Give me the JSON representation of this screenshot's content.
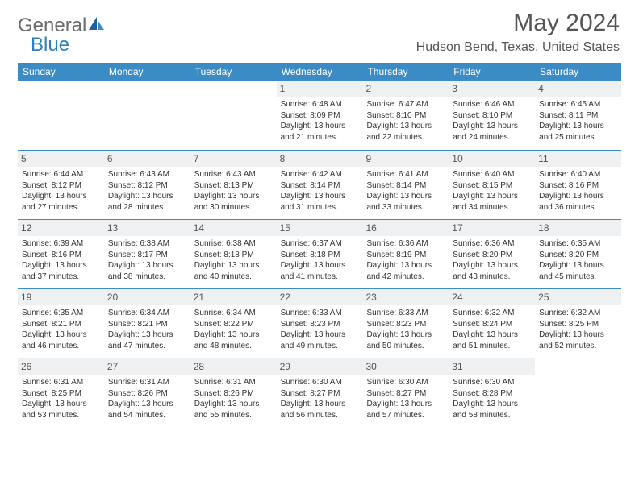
{
  "logo": {
    "part1": "General",
    "part2": "Blue"
  },
  "title": "May 2024",
  "location": "Hudson Bend, Texas, United States",
  "colors": {
    "header_bg": "#3b8bc4",
    "header_text": "#ffffff",
    "daynum_bg": "#eef0f2",
    "text": "#333333",
    "title_text": "#555555",
    "row_border": "#3b8bc4",
    "logo_gray": "#6b6b6b",
    "logo_blue": "#2d7fbf"
  },
  "dayHeaders": [
    "Sunday",
    "Monday",
    "Tuesday",
    "Wednesday",
    "Thursday",
    "Friday",
    "Saturday"
  ],
  "weeks": [
    [
      {
        "empty": true
      },
      {
        "empty": true
      },
      {
        "empty": true
      },
      {
        "num": "1",
        "sunrise": "Sunrise: 6:48 AM",
        "sunset": "Sunset: 8:09 PM",
        "daylight": "Daylight: 13 hours and 21 minutes."
      },
      {
        "num": "2",
        "sunrise": "Sunrise: 6:47 AM",
        "sunset": "Sunset: 8:10 PM",
        "daylight": "Daylight: 13 hours and 22 minutes."
      },
      {
        "num": "3",
        "sunrise": "Sunrise: 6:46 AM",
        "sunset": "Sunset: 8:10 PM",
        "daylight": "Daylight: 13 hours and 24 minutes."
      },
      {
        "num": "4",
        "sunrise": "Sunrise: 6:45 AM",
        "sunset": "Sunset: 8:11 PM",
        "daylight": "Daylight: 13 hours and 25 minutes."
      }
    ],
    [
      {
        "num": "5",
        "sunrise": "Sunrise: 6:44 AM",
        "sunset": "Sunset: 8:12 PM",
        "daylight": "Daylight: 13 hours and 27 minutes."
      },
      {
        "num": "6",
        "sunrise": "Sunrise: 6:43 AM",
        "sunset": "Sunset: 8:12 PM",
        "daylight": "Daylight: 13 hours and 28 minutes."
      },
      {
        "num": "7",
        "sunrise": "Sunrise: 6:43 AM",
        "sunset": "Sunset: 8:13 PM",
        "daylight": "Daylight: 13 hours and 30 minutes."
      },
      {
        "num": "8",
        "sunrise": "Sunrise: 6:42 AM",
        "sunset": "Sunset: 8:14 PM",
        "daylight": "Daylight: 13 hours and 31 minutes."
      },
      {
        "num": "9",
        "sunrise": "Sunrise: 6:41 AM",
        "sunset": "Sunset: 8:14 PM",
        "daylight": "Daylight: 13 hours and 33 minutes."
      },
      {
        "num": "10",
        "sunrise": "Sunrise: 6:40 AM",
        "sunset": "Sunset: 8:15 PM",
        "daylight": "Daylight: 13 hours and 34 minutes."
      },
      {
        "num": "11",
        "sunrise": "Sunrise: 6:40 AM",
        "sunset": "Sunset: 8:16 PM",
        "daylight": "Daylight: 13 hours and 36 minutes."
      }
    ],
    [
      {
        "num": "12",
        "sunrise": "Sunrise: 6:39 AM",
        "sunset": "Sunset: 8:16 PM",
        "daylight": "Daylight: 13 hours and 37 minutes."
      },
      {
        "num": "13",
        "sunrise": "Sunrise: 6:38 AM",
        "sunset": "Sunset: 8:17 PM",
        "daylight": "Daylight: 13 hours and 38 minutes."
      },
      {
        "num": "14",
        "sunrise": "Sunrise: 6:38 AM",
        "sunset": "Sunset: 8:18 PM",
        "daylight": "Daylight: 13 hours and 40 minutes."
      },
      {
        "num": "15",
        "sunrise": "Sunrise: 6:37 AM",
        "sunset": "Sunset: 8:18 PM",
        "daylight": "Daylight: 13 hours and 41 minutes."
      },
      {
        "num": "16",
        "sunrise": "Sunrise: 6:36 AM",
        "sunset": "Sunset: 8:19 PM",
        "daylight": "Daylight: 13 hours and 42 minutes."
      },
      {
        "num": "17",
        "sunrise": "Sunrise: 6:36 AM",
        "sunset": "Sunset: 8:20 PM",
        "daylight": "Daylight: 13 hours and 43 minutes."
      },
      {
        "num": "18",
        "sunrise": "Sunrise: 6:35 AM",
        "sunset": "Sunset: 8:20 PM",
        "daylight": "Daylight: 13 hours and 45 minutes."
      }
    ],
    [
      {
        "num": "19",
        "sunrise": "Sunrise: 6:35 AM",
        "sunset": "Sunset: 8:21 PM",
        "daylight": "Daylight: 13 hours and 46 minutes."
      },
      {
        "num": "20",
        "sunrise": "Sunrise: 6:34 AM",
        "sunset": "Sunset: 8:21 PM",
        "daylight": "Daylight: 13 hours and 47 minutes."
      },
      {
        "num": "21",
        "sunrise": "Sunrise: 6:34 AM",
        "sunset": "Sunset: 8:22 PM",
        "daylight": "Daylight: 13 hours and 48 minutes."
      },
      {
        "num": "22",
        "sunrise": "Sunrise: 6:33 AM",
        "sunset": "Sunset: 8:23 PM",
        "daylight": "Daylight: 13 hours and 49 minutes."
      },
      {
        "num": "23",
        "sunrise": "Sunrise: 6:33 AM",
        "sunset": "Sunset: 8:23 PM",
        "daylight": "Daylight: 13 hours and 50 minutes."
      },
      {
        "num": "24",
        "sunrise": "Sunrise: 6:32 AM",
        "sunset": "Sunset: 8:24 PM",
        "daylight": "Daylight: 13 hours and 51 minutes."
      },
      {
        "num": "25",
        "sunrise": "Sunrise: 6:32 AM",
        "sunset": "Sunset: 8:25 PM",
        "daylight": "Daylight: 13 hours and 52 minutes."
      }
    ],
    [
      {
        "num": "26",
        "sunrise": "Sunrise: 6:31 AM",
        "sunset": "Sunset: 8:25 PM",
        "daylight": "Daylight: 13 hours and 53 minutes."
      },
      {
        "num": "27",
        "sunrise": "Sunrise: 6:31 AM",
        "sunset": "Sunset: 8:26 PM",
        "daylight": "Daylight: 13 hours and 54 minutes."
      },
      {
        "num": "28",
        "sunrise": "Sunrise: 6:31 AM",
        "sunset": "Sunset: 8:26 PM",
        "daylight": "Daylight: 13 hours and 55 minutes."
      },
      {
        "num": "29",
        "sunrise": "Sunrise: 6:30 AM",
        "sunset": "Sunset: 8:27 PM",
        "daylight": "Daylight: 13 hours and 56 minutes."
      },
      {
        "num": "30",
        "sunrise": "Sunrise: 6:30 AM",
        "sunset": "Sunset: 8:27 PM",
        "daylight": "Daylight: 13 hours and 57 minutes."
      },
      {
        "num": "31",
        "sunrise": "Sunrise: 6:30 AM",
        "sunset": "Sunset: 8:28 PM",
        "daylight": "Daylight: 13 hours and 58 minutes."
      },
      {
        "empty": true
      }
    ]
  ]
}
